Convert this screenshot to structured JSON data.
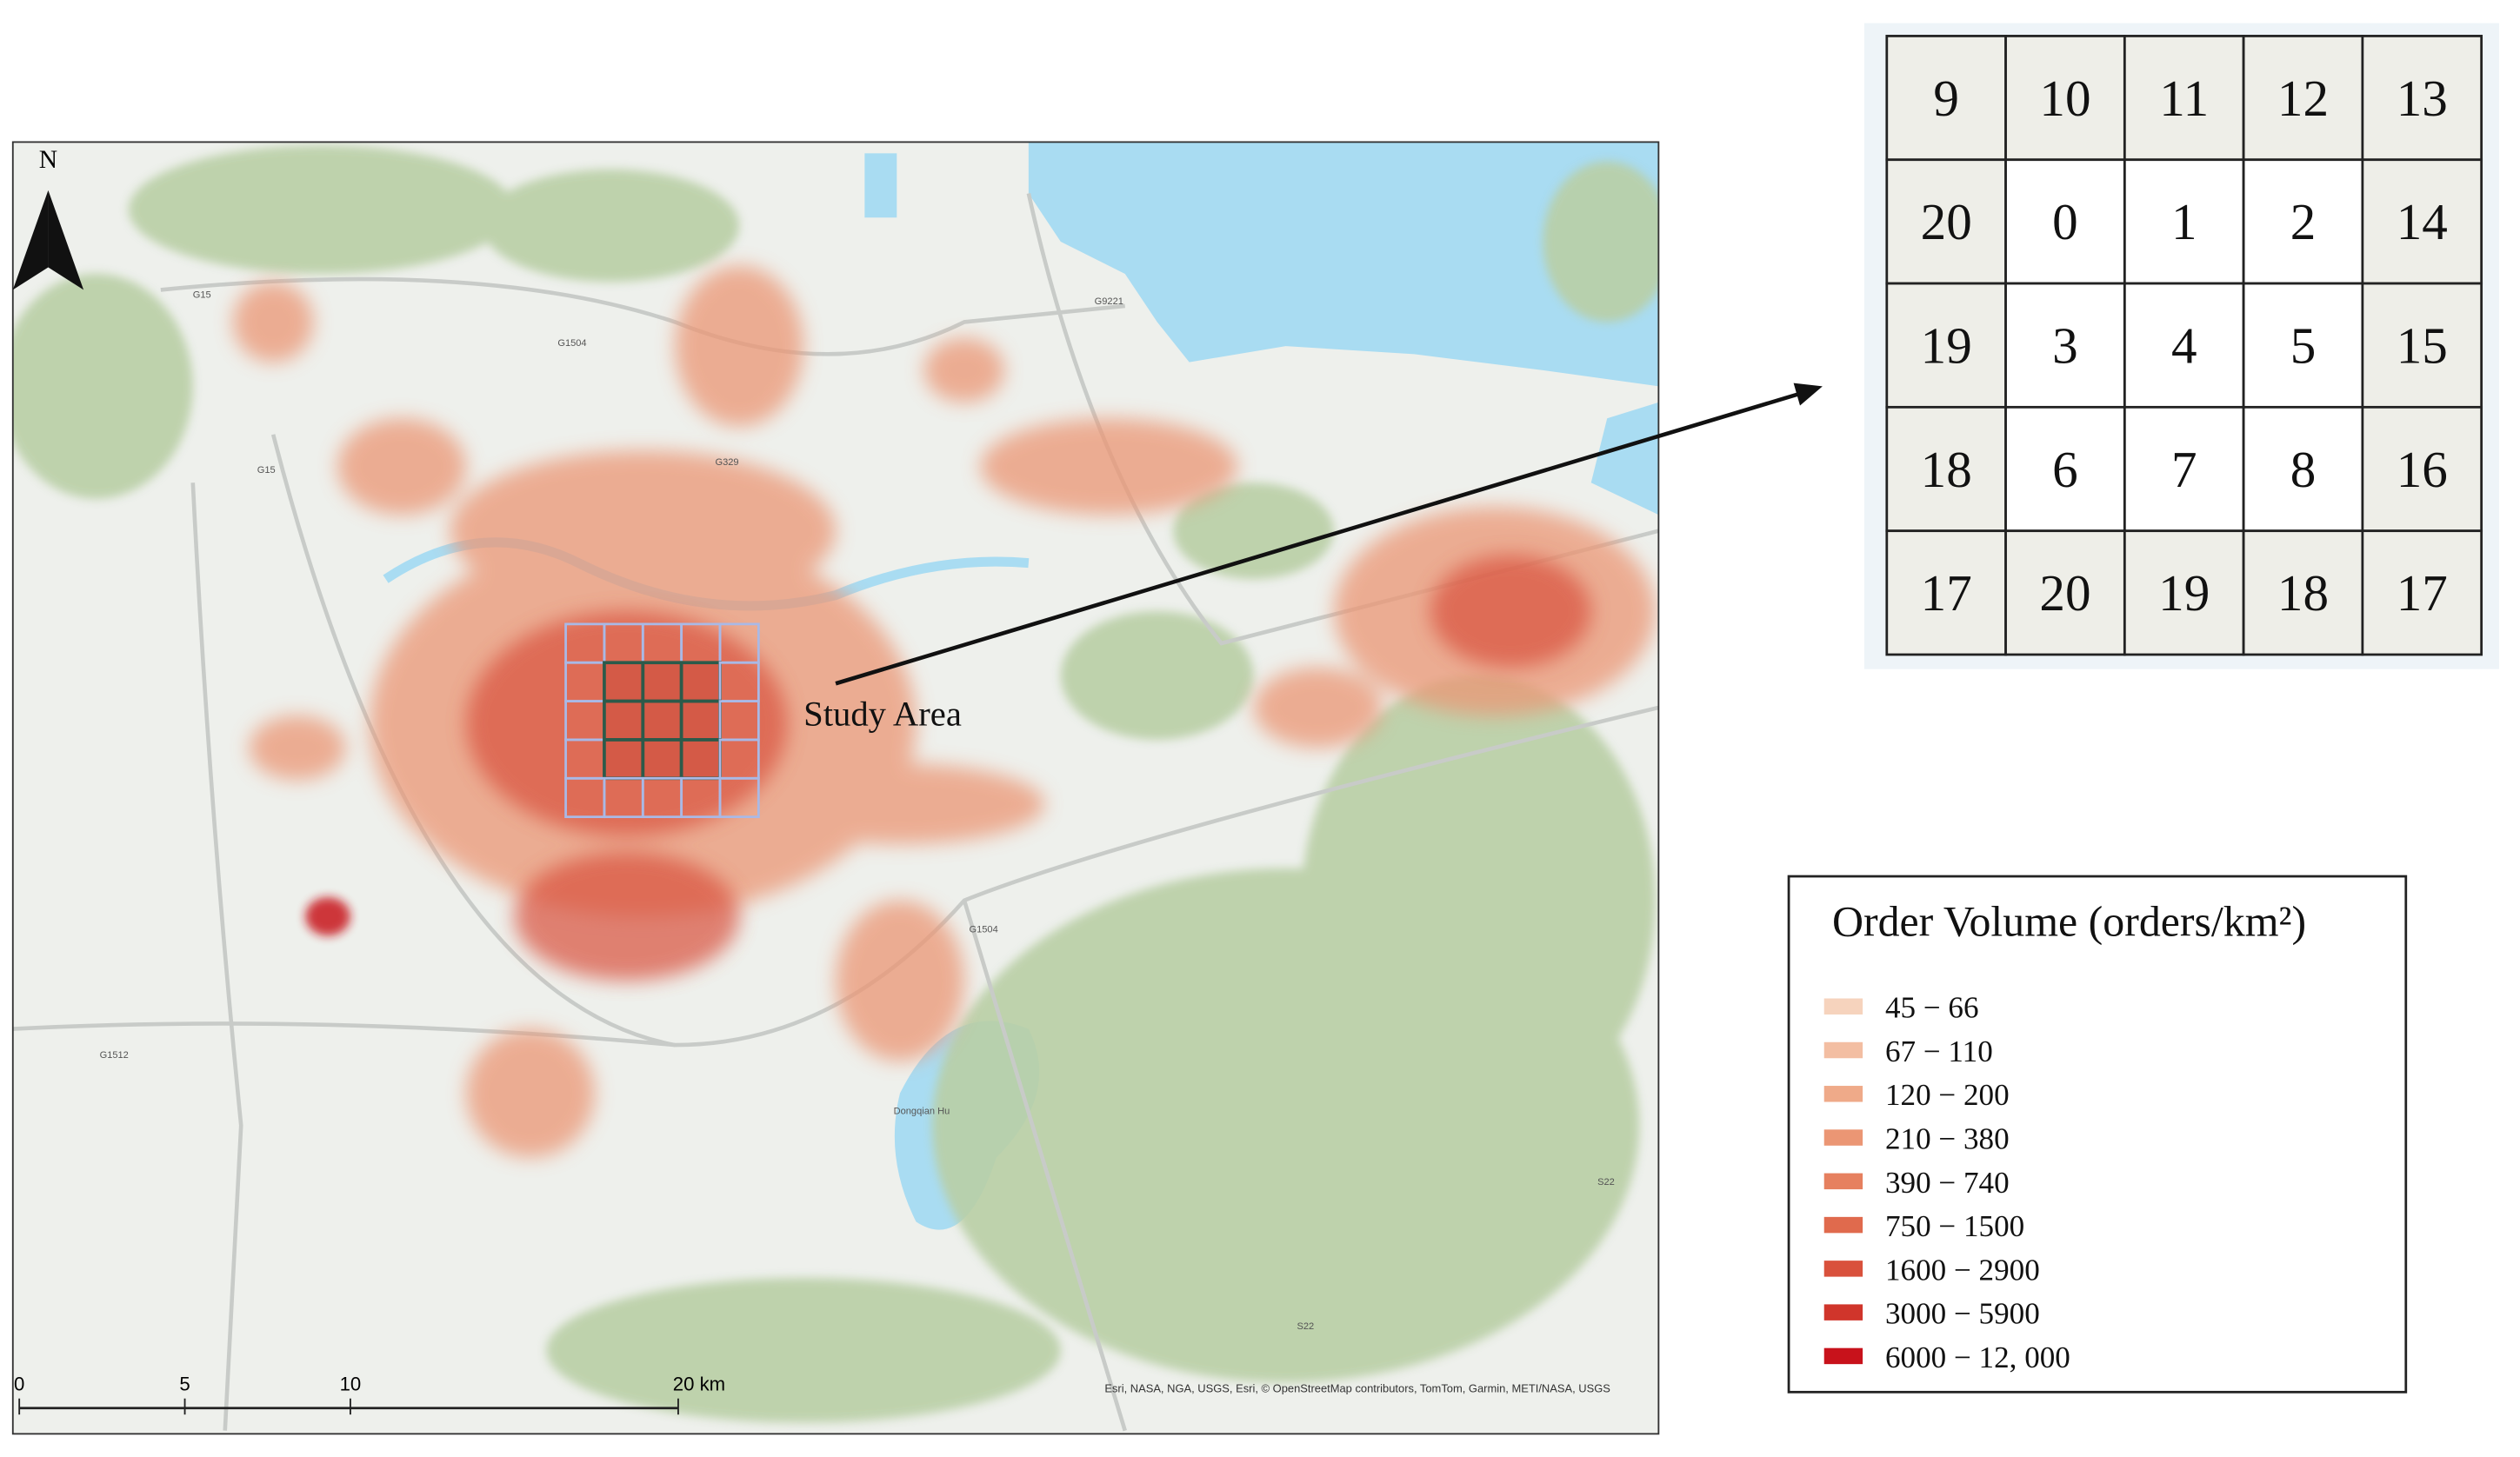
{
  "map": {
    "north_label": "N",
    "study_area_label": "Study Area",
    "road_labels": [
      "G15",
      "G1504",
      "G329",
      "G9221",
      "G1512",
      "G1504",
      "S22",
      "S22",
      "G15"
    ],
    "lake_label": "Dongqian Hu",
    "scale_labels": [
      "0",
      "5",
      "10",
      "20 km"
    ],
    "attribution": "Esri, NASA, NGA, USGS, Esri, © OpenStreetMap contributors, TomTom, Garmin, METI/NASA, USGS"
  },
  "grid": {
    "rows": [
      [
        "9",
        "10",
        "11",
        "12",
        "13"
      ],
      [
        "20",
        "0",
        "1",
        "2",
        "14"
      ],
      [
        "19",
        "3",
        "4",
        "5",
        "15"
      ],
      [
        "18",
        "6",
        "7",
        "8",
        "16"
      ],
      [
        "17",
        "20",
        "19",
        "18",
        "17"
      ]
    ]
  },
  "legend": {
    "title": "Order Volume (orders/km²)",
    "items": [
      {
        "label": "45 − 66",
        "color": "#f6d3bd"
      },
      {
        "label": "67 − 110",
        "color": "#f3bea2"
      },
      {
        "label": "120 − 200",
        "color": "#efaa89"
      },
      {
        "label": "210 − 380",
        "color": "#eb9674"
      },
      {
        "label": "390 − 740",
        "color": "#e6805f"
      },
      {
        "label": "750 − 1500",
        "color": "#e06a4d"
      },
      {
        "label": "1600 − 2900",
        "color": "#d9513c"
      },
      {
        "label": "3000 − 5900",
        "color": "#d0352b"
      },
      {
        "label": "6000 − 12, 000",
        "color": "#c8121b"
      }
    ]
  }
}
